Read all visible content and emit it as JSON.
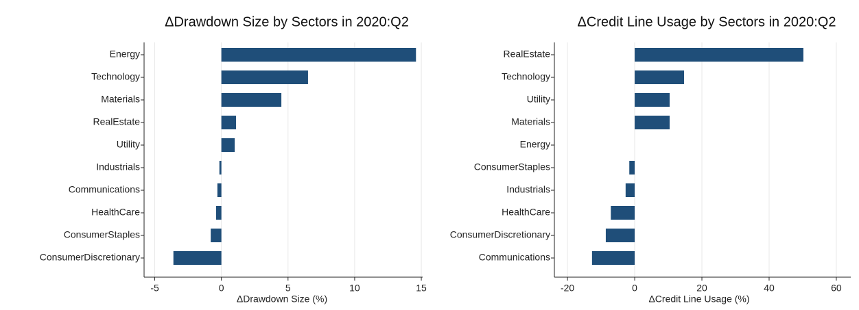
{
  "chart_data": [
    {
      "type": "bar",
      "orientation": "horizontal",
      "title": "ΔDrawdown Size by Sectors in 2020:Q2",
      "x_label": "ΔDrawdown Size (%)",
      "categories": [
        "Energy",
        "Technology",
        "Materials",
        "RealEstate",
        "Utility",
        "Industrials",
        "Communications",
        "HealthCare",
        "ConsumerStaples",
        "ConsumerDiscretionary"
      ],
      "values": [
        14.6,
        6.5,
        4.5,
        1.1,
        1.0,
        -0.15,
        -0.3,
        -0.4,
        -0.8,
        -3.6
      ],
      "color": "#1f4e79",
      "xlim": [
        -5.8,
        15.1
      ],
      "xticks": [
        -5,
        0,
        5,
        10,
        15
      ],
      "grid": true
    },
    {
      "type": "bar",
      "orientation": "horizontal",
      "title": "ΔCredit Line Usage by Sectors in 2020:Q2",
      "x_label": "ΔCredit Line Usage (%)",
      "categories": [
        "RealEstate",
        "Technology",
        "Utility",
        "Materials",
        "Energy",
        "ConsumerStaples",
        "Industrials",
        "HealthCare",
        "ConsumerDiscretionary",
        "Communications"
      ],
      "values": [
        50.2,
        14.7,
        10.4,
        10.4,
        0,
        -1.6,
        -2.7,
        -7.1,
        -8.6,
        -12.7
      ],
      "color": "#1f4e79",
      "xlim": [
        -23.9,
        64.3
      ],
      "xticks": [
        -20,
        0,
        20,
        40,
        60
      ],
      "grid": true
    }
  ]
}
